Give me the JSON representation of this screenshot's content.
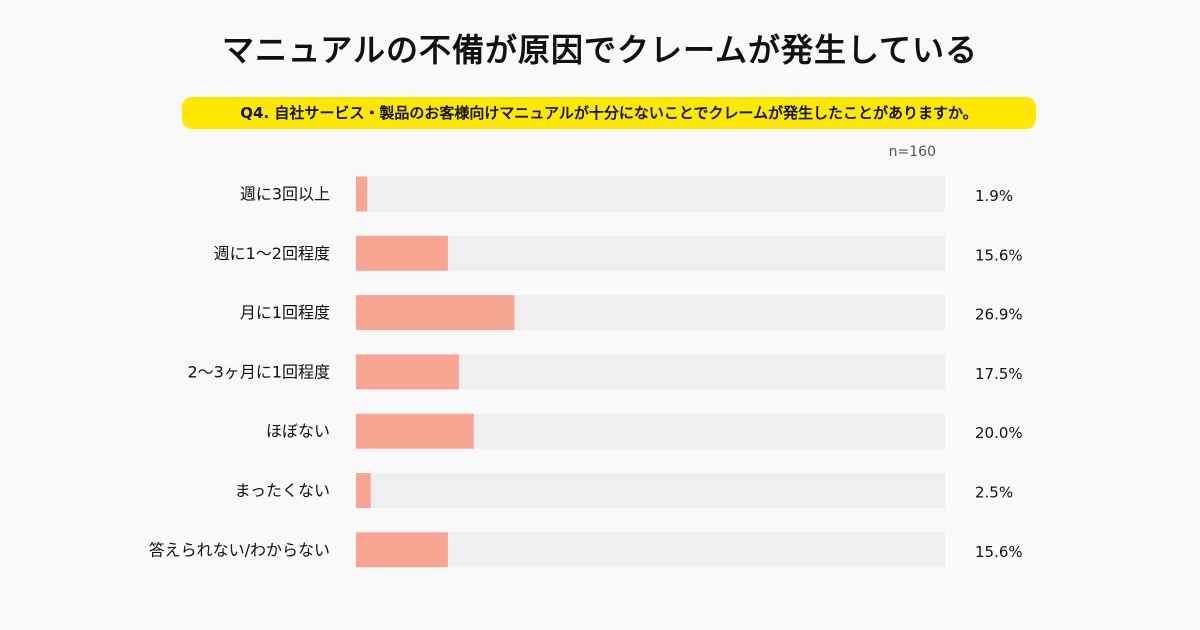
{
  "header": {
    "title": "マニュアルの不備が原因でクレームが発生している",
    "question": "Q4. 自社サービス・製品のお客様向けマニュアルが十分にないことでクレームが発生したことがありますか。",
    "sample_size": "n=160"
  },
  "colors": {
    "bar": "#f8a593",
    "track": "#efefef",
    "highlight": "#ffe800"
  },
  "chart_data": {
    "type": "bar",
    "orientation": "horizontal",
    "categories": [
      "週に3回以上",
      "週に1〜2回程度",
      "月に1回程度",
      "2〜3ヶ月に1回程度",
      "ほぼない",
      "まったくない",
      "答えられない/わからない"
    ],
    "values": [
      1.9,
      15.6,
      26.9,
      17.5,
      20.0,
      2.5,
      15.6
    ],
    "value_labels": [
      "1.9%",
      "15.6%",
      "26.9%",
      "17.5%",
      "20.0%",
      "2.5%",
      "15.6%"
    ],
    "xlim": [
      0,
      100
    ],
    "unit": "%",
    "grid": false,
    "legend": "none"
  }
}
